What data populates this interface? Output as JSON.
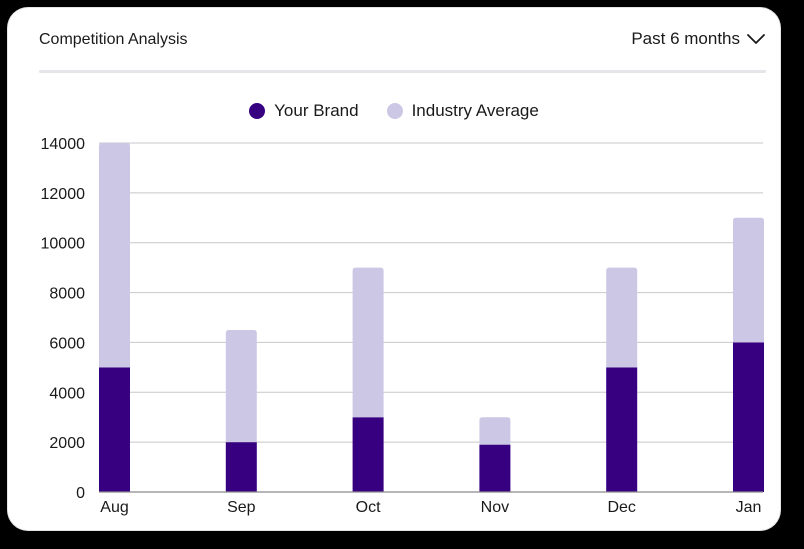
{
  "header": {
    "title": "Competition Analysis",
    "range_label": "Past 6 months"
  },
  "colors": {
    "brand": "#360081",
    "industry": "#cbc7e4",
    "grid": "#c8c8cc",
    "baseline": "#8a8a8e"
  },
  "icons": {
    "range_toggle": "chevron-down-icon"
  },
  "chart_data": {
    "type": "bar",
    "stacked": true,
    "categories": [
      "Aug",
      "Sep",
      "Oct",
      "Nov",
      "Dec",
      "Jan"
    ],
    "series": [
      {
        "name": "Your Brand",
        "values": [
          5000,
          2000,
          3000,
          1900,
          5000,
          6000
        ]
      },
      {
        "name": "Industry Average",
        "values": [
          9000,
          4500,
          6000,
          1100,
          4000,
          5000
        ]
      }
    ],
    "yticks": [
      0,
      2000,
      4000,
      6000,
      8000,
      10000,
      12000,
      14000
    ],
    "ylim": [
      0,
      14000
    ],
    "grid": true,
    "legend_position": "top-center",
    "title": "",
    "xlabel": "",
    "ylabel": ""
  }
}
